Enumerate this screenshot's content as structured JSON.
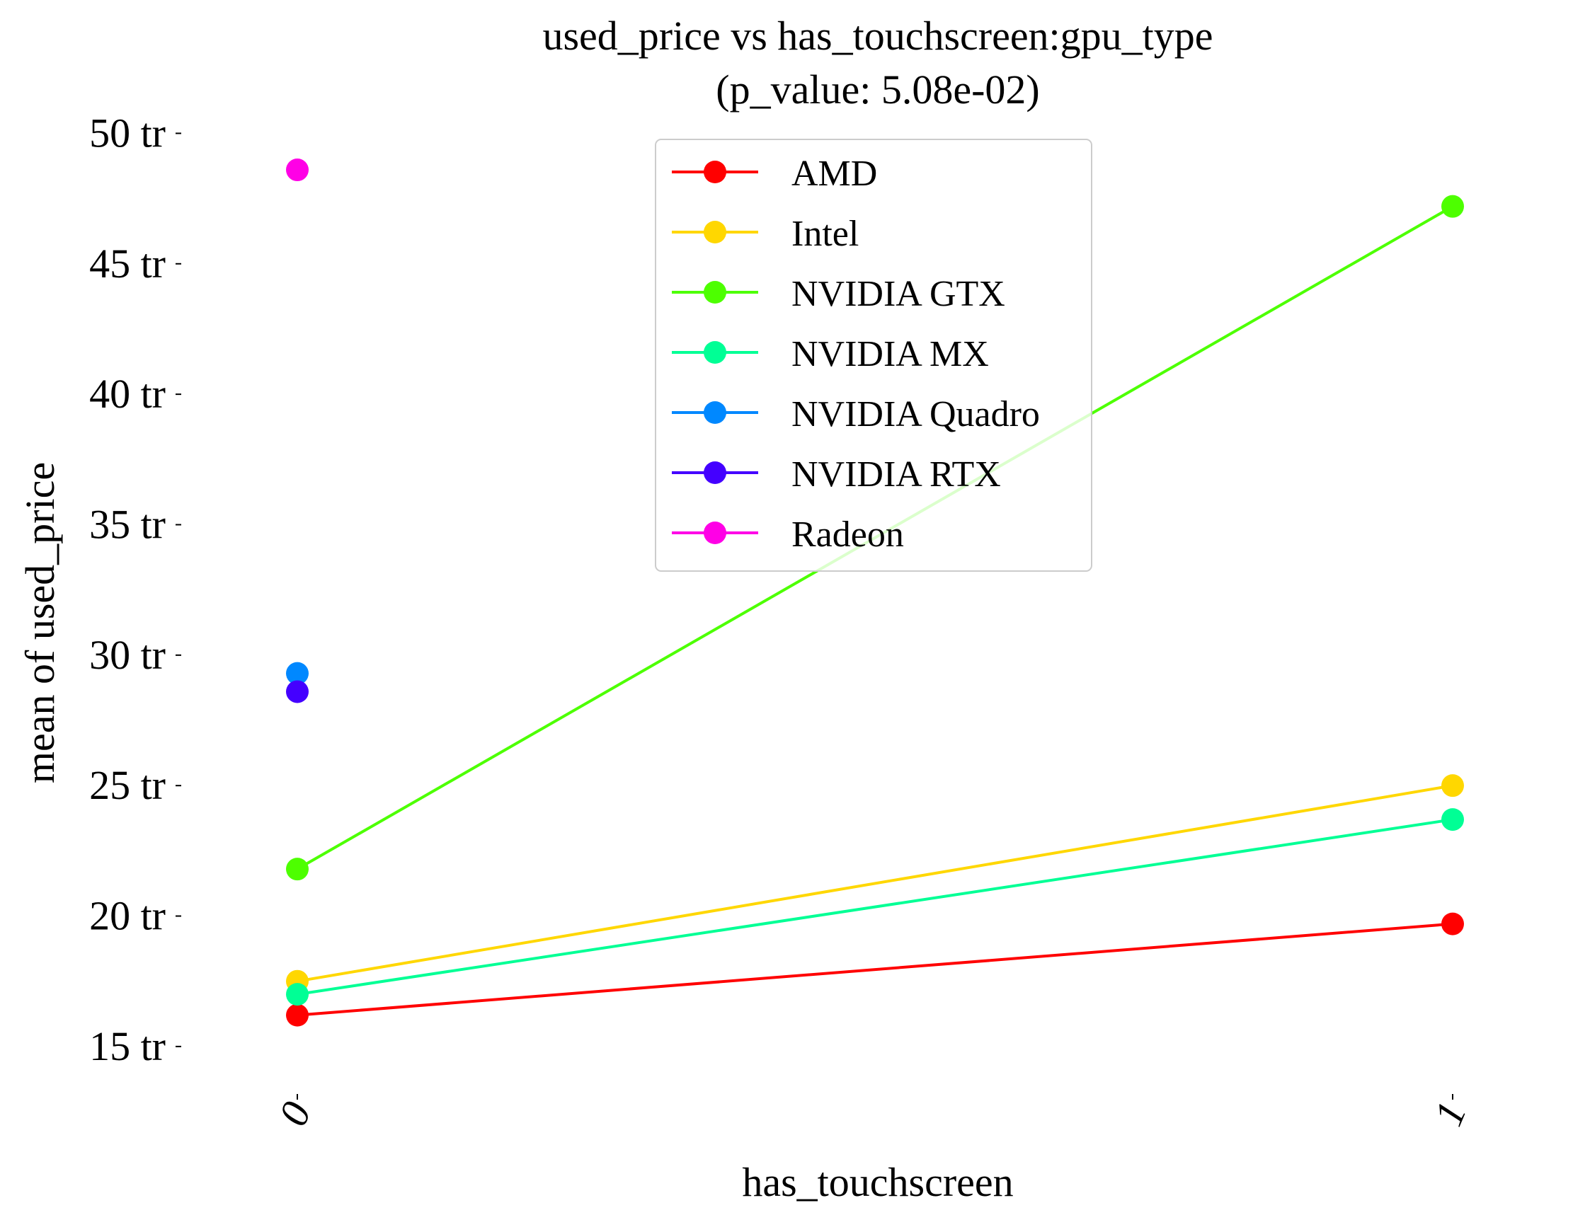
{
  "chart_data": {
    "type": "line",
    "title": "used_price vs has_touchscreen:gpu_type",
    "subtitle": "(p_value: 5.08e-02)",
    "xlabel": "has_touchscreen",
    "ylabel": "mean of used_price",
    "categories": [
      "0",
      "1"
    ],
    "ylim": [
      12.8,
      50.5
    ],
    "y_ticks": [
      {
        "value": 15,
        "label": "15 tr"
      },
      {
        "value": 20,
        "label": "20 tr"
      },
      {
        "value": 25,
        "label": "25 tr"
      },
      {
        "value": 30,
        "label": "30 tr"
      },
      {
        "value": 35,
        "label": "35 tr"
      },
      {
        "value": 40,
        "label": "40 tr"
      },
      {
        "value": 45,
        "label": "45 tr"
      },
      {
        "value": 50,
        "label": "50 tr"
      }
    ],
    "grid": false,
    "legend_position": "top-center",
    "series": [
      {
        "name": "AMD",
        "color": "#ff0000",
        "values": [
          16.2,
          19.7
        ]
      },
      {
        "name": "Intel",
        "color": "#ffd700",
        "values": [
          17.5,
          25.0
        ]
      },
      {
        "name": "NVIDIA GTX",
        "color": "#4dff00",
        "values": [
          21.8,
          47.2
        ]
      },
      {
        "name": "NVIDIA MX",
        "color": "#00ff95",
        "values": [
          17.0,
          23.7
        ]
      },
      {
        "name": "NVIDIA Quadro",
        "color": "#0088ff",
        "values": [
          29.3,
          null
        ]
      },
      {
        "name": "NVIDIA RTX",
        "color": "#4400ff",
        "values": [
          28.6,
          null
        ]
      },
      {
        "name": "Radeon",
        "color": "#ff00e6",
        "values": [
          48.6,
          null
        ]
      }
    ]
  }
}
